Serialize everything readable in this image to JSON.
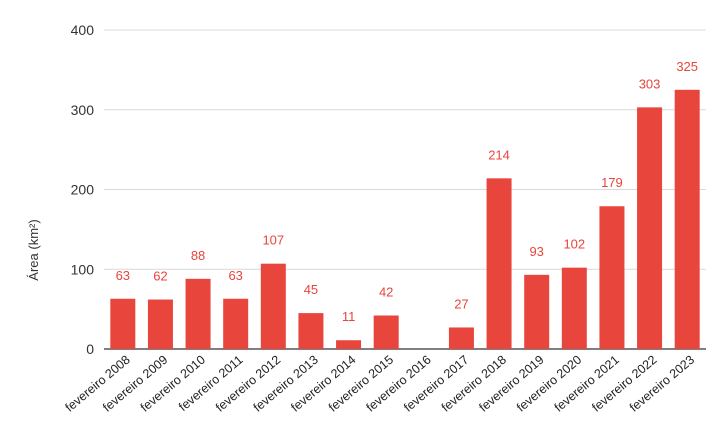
{
  "chart_data": {
    "type": "bar",
    "title": "",
    "xlabel": "",
    "ylabel": "Área (km²)",
    "ylim": [
      0,
      400
    ],
    "yticks": [
      0,
      100,
      200,
      300,
      400
    ],
    "grid": true,
    "bar_color": "#e8453c",
    "label_color": "#e8453c",
    "categories": [
      "fevereiro 2008",
      "fevereiro 2009",
      "fevereiro 2010",
      "fevereiro 2011",
      "fevereiro 2012",
      "fevereiro 2013",
      "fevereiro 2014",
      "fevereiro 2015",
      "fevereiro 2016",
      "fevereiro 2017",
      "fevereiro 2018",
      "fevereiro 2019",
      "fevereiro 2020",
      "fevereiro 2021",
      "fevereiro 2022",
      "fevereiro 2023"
    ],
    "values": [
      63,
      62,
      88,
      63,
      107,
      45,
      11,
      42,
      null,
      27,
      214,
      93,
      102,
      179,
      303,
      325
    ],
    "data_labels": [
      "63",
      "62",
      "88",
      "63",
      "107",
      "45",
      "11",
      "42",
      "",
      "27",
      "214",
      "93",
      "102",
      "179",
      "303",
      "325"
    ]
  }
}
